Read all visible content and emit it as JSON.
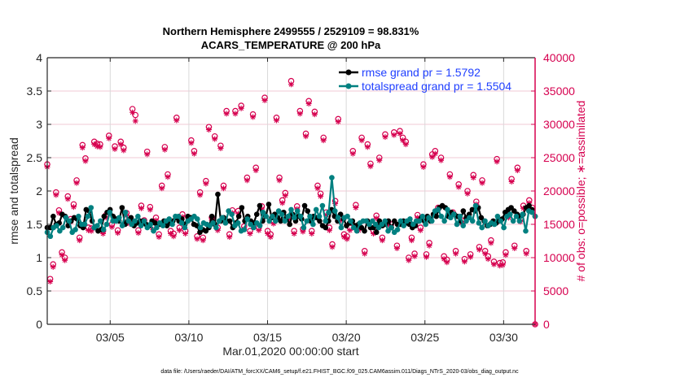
{
  "chart_data": {
    "type": "line",
    "title": "Northern Hemisphere 2499555 / 2529109 = 98.831%",
    "subtitle": "ACARS_TEMPERATURE @ 200 hPa",
    "xlabel": "Mar.01,2020 00:00:00 start",
    "ylabel_left": "rmse and totalspread",
    "ylabel_right": "# of obs: o=possible; ∗=assimilated",
    "x_unit": "days since Mar.01,2020 00:00:00 (6-hourly)",
    "xlim_days": [
      0,
      31
    ],
    "ylim_left": [
      0,
      4
    ],
    "ylim_right": [
      0,
      40000
    ],
    "x_ticks": [
      {
        "day": 4,
        "label": "03/05"
      },
      {
        "day": 9,
        "label": "03/10"
      },
      {
        "day": 14,
        "label": "03/15"
      },
      {
        "day": 19,
        "label": "03/20"
      },
      {
        "day": 24,
        "label": "03/25"
      },
      {
        "day": 29,
        "label": "03/30"
      }
    ],
    "y_ticks_left": [
      "0",
      "0.5",
      "1",
      "1.5",
      "2",
      "2.5",
      "3",
      "3.5",
      "4"
    ],
    "y_ticks_right": [
      "0",
      "5000",
      "10000",
      "15000",
      "20000",
      "25000",
      "30000",
      "35000",
      "40000"
    ],
    "grid": true,
    "legend_position": "top-right",
    "colors": {
      "rmse": "#000000",
      "totalspread": "#008080",
      "obs": "#d6004f",
      "legend_text": "#1f3fff",
      "grid": "#f2c8d6",
      "xgrid": "#d9d9d9"
    },
    "series": [
      {
        "name": "rmse grand pr = 1.5792",
        "key": "rmse",
        "axis": "left",
        "marker": "asterisk-dot",
        "values": [
          1.45,
          1.45,
          1.62,
          1.5,
          1.52,
          1.65,
          1.62,
          1.48,
          1.55,
          1.6,
          1.58,
          1.48,
          1.45,
          1.72,
          1.7,
          1.55,
          1.45,
          1.4,
          1.42,
          1.62,
          1.68,
          1.72,
          1.62,
          1.58,
          1.55,
          1.75,
          1.5,
          1.55,
          1.6,
          1.48,
          1.52,
          1.55,
          1.55,
          1.5,
          1.48,
          1.55,
          1.52,
          1.5,
          1.5,
          1.55,
          1.48,
          1.52,
          1.55,
          1.6,
          1.55,
          1.58,
          1.5,
          1.62,
          1.6,
          1.5,
          1.48,
          1.38,
          1.42,
          1.4,
          1.45,
          1.62,
          1.5,
          1.95,
          1.55,
          1.6,
          1.55,
          1.55,
          1.45,
          1.52,
          1.62,
          1.75,
          1.55,
          1.62,
          1.55,
          1.52,
          1.65,
          1.78,
          1.55,
          1.62,
          1.8,
          1.6,
          1.65,
          1.6,
          1.55,
          1.68,
          1.6,
          1.5,
          1.65,
          1.55,
          1.62,
          1.58,
          1.78,
          1.7,
          1.55,
          1.62,
          1.6,
          1.55,
          1.48,
          1.45,
          1.55,
          1.72,
          1.62,
          1.55,
          1.65,
          1.58,
          1.48,
          1.52,
          1.55,
          1.48,
          1.5,
          1.45,
          1.4,
          1.55,
          1.45,
          1.45,
          1.38,
          1.55,
          1.48,
          1.5,
          1.55,
          1.45,
          1.55,
          1.5,
          1.5,
          1.55,
          1.52,
          1.5,
          1.45,
          1.48,
          1.55,
          1.6,
          1.55,
          1.62,
          1.55,
          1.65,
          1.62,
          1.75,
          1.78,
          1.75,
          1.62,
          1.68,
          1.65,
          1.62,
          1.55,
          1.7,
          1.6,
          1.65,
          1.72,
          1.7,
          1.75,
          1.6,
          1.55,
          1.48,
          1.5,
          1.55,
          1.52,
          1.55,
          1.58,
          1.68,
          1.72,
          1.75,
          1.7,
          1.65,
          1.62,
          1.65,
          1.75,
          1.78,
          1.72,
          1.62
        ]
      },
      {
        "name": "totalspread grand pr = 1.5504",
        "key": "totalspread",
        "axis": "left",
        "marker": "filled-circle",
        "values": [
          1.38,
          1.32,
          1.45,
          1.48,
          1.4,
          1.45,
          1.6,
          1.55,
          1.38,
          1.42,
          1.62,
          1.5,
          1.5,
          1.62,
          1.75,
          1.45,
          1.48,
          1.55,
          1.42,
          1.5,
          1.68,
          1.55,
          1.55,
          1.6,
          1.48,
          1.68,
          1.55,
          1.5,
          1.55,
          1.62,
          1.48,
          1.55,
          1.45,
          1.5,
          1.4,
          1.45,
          1.52,
          1.48,
          1.55,
          1.58,
          1.5,
          1.62,
          1.62,
          1.52,
          1.45,
          1.55,
          1.58,
          1.62,
          1.58,
          1.45,
          1.52,
          1.5,
          1.48,
          1.52,
          1.45,
          1.55,
          1.6,
          1.52,
          1.7,
          1.65,
          1.48,
          1.52,
          1.4,
          1.42,
          1.58,
          1.5,
          1.45,
          1.52,
          1.48,
          1.68,
          1.62,
          1.55,
          1.62,
          1.55,
          1.7,
          1.65,
          1.55,
          1.62,
          1.72,
          1.6,
          1.7,
          1.62,
          1.45,
          1.55,
          1.62,
          1.5,
          1.72,
          1.62,
          1.78,
          1.55,
          1.68,
          2.2,
          1.7,
          1.6,
          1.45,
          1.6,
          1.62,
          1.55,
          1.45,
          1.4,
          1.52,
          1.55,
          1.55,
          1.5,
          1.55,
          1.5,
          1.45,
          1.5,
          1.55,
          1.4,
          1.45,
          1.38,
          1.42,
          1.55,
          1.48,
          1.55,
          1.58,
          1.5,
          1.55,
          1.55,
          1.62,
          1.5,
          1.6,
          1.55,
          1.7,
          1.72,
          1.62,
          1.55,
          1.72,
          1.6,
          1.65,
          1.5,
          1.62,
          1.48,
          1.55,
          1.6,
          1.55,
          1.78,
          1.52,
          1.45,
          1.55,
          1.48,
          1.52,
          1.5,
          1.62,
          1.55,
          1.45,
          1.62,
          1.65,
          1.55,
          1.62,
          1.55,
          1.65,
          1.4,
          1.7,
          1.68,
          1.62
        ]
      },
      {
        "name": "obs possible",
        "key": "obs_possible",
        "axis": "right",
        "marker": "open-circle",
        "values": [
          24000,
          6800,
          9000,
          19800,
          17100,
          10800,
          10000,
          19200,
          15800,
          18000,
          21600,
          13000,
          26900,
          24900,
          14500,
          14400,
          27400,
          27100,
          27000,
          14000,
          16400,
          28300,
          15000,
          26700,
          14100,
          27400,
          26500,
          16700,
          15500,
          32300,
          31400,
          14100,
          17800,
          15600,
          25900,
          17600,
          14600,
          16000,
          13500,
          20800,
          26600,
          22500,
          14000,
          13600,
          31000,
          14500,
          16500,
          14000,
          16000,
          27600,
          26000,
          13200,
          19800,
          13000,
          21500,
          29600,
          16000,
          28200,
          14500,
          26800,
          20800,
          32000,
          13500,
          17100,
          32000,
          17000,
          32800,
          14700,
          22000,
          14000,
          31500,
          23500,
          14500,
          17700,
          34000,
          14000,
          13500,
          15500,
          31000,
          22000,
          18600,
          19700,
          16000,
          36500,
          14000,
          17700,
          32000,
          14300,
          28600,
          33500,
          14000,
          31900,
          20800,
          19600,
          28000,
          16800,
          14500,
          12000,
          18500,
          30800,
          16000,
          13500,
          13200,
          14500,
          26000,
          17900,
          14500,
          28000,
          11000,
          27000,
          24100,
          14000,
          16300,
          25000,
          13000,
          28500,
          15400,
          15000,
          28800,
          11800,
          29000,
          28000,
          27400,
          10000,
          13000,
          10600,
          16400,
          14500,
          24000,
          10500,
          12200,
          25500,
          26000,
          17500,
          25000,
          10200,
          9700,
          22500,
          16800,
          11000,
          21000,
          15600,
          9800,
          20000,
          10500,
          22400,
          18400,
          11600,
          21600,
          11000,
          10200,
          12600,
          9400,
          24800,
          9200,
          9300,
          10800,
          16400,
          21800,
          11800,
          23500,
          15800,
          17800,
          11000,
          18600,
          17500,
          0
        ]
      },
      {
        "name": "obs assimilated",
        "key": "obs_assimilated",
        "axis": "right",
        "marker": "asterisk",
        "values": [
          23600,
          6400,
          8600,
          19400,
          16700,
          10400,
          9600,
          18800,
          15400,
          17600,
          21200,
          12600,
          26500,
          24500,
          14100,
          14000,
          27000,
          26700,
          26600,
          13600,
          16000,
          27900,
          14600,
          26300,
          13700,
          27000,
          26100,
          16300,
          15100,
          31800,
          30500,
          13700,
          17400,
          15200,
          25500,
          17200,
          14200,
          15600,
          13100,
          20400,
          26200,
          22100,
          13600,
          13200,
          30600,
          14100,
          16100,
          13600,
          15600,
          27200,
          25600,
          12800,
          19400,
          12600,
          21100,
          29200,
          15600,
          27800,
          14100,
          26400,
          20400,
          31600,
          13100,
          16700,
          31600,
          16600,
          32400,
          14300,
          21600,
          13600,
          31100,
          23100,
          14100,
          17300,
          33600,
          13600,
          13100,
          15100,
          30600,
          21600,
          18200,
          19300,
          15600,
          36000,
          13600,
          17300,
          31600,
          13900,
          28200,
          33100,
          13600,
          31500,
          20400,
          19200,
          27600,
          16400,
          14100,
          11600,
          18100,
          30400,
          15600,
          13100,
          12800,
          14100,
          25600,
          17500,
          14100,
          27600,
          10600,
          26600,
          23700,
          13600,
          15900,
          24600,
          12600,
          28100,
          15000,
          14600,
          28400,
          11400,
          28600,
          27600,
          27000,
          9600,
          12600,
          10200,
          16000,
          14100,
          23600,
          10100,
          11800,
          25100,
          25600,
          17100,
          24600,
          9800,
          9300,
          22100,
          16400,
          10600,
          20600,
          15200,
          9400,
          19600,
          10100,
          22000,
          18000,
          11200,
          21200,
          10600,
          9800,
          12200,
          9000,
          24400,
          8800,
          8900,
          10400,
          16000,
          21400,
          11400,
          23100,
          15400,
          17400,
          10600,
          18200,
          17100,
          0
        ]
      }
    ],
    "annotations": {
      "footnote": "data file: /Users/raeder/DAI/ATM_forcXX/CAM6_setup/f.e21.FHIST_BGC.f09_025.CAM6assim.011/Diags_NTrS_2020-03/obs_diag_output.nc"
    }
  }
}
